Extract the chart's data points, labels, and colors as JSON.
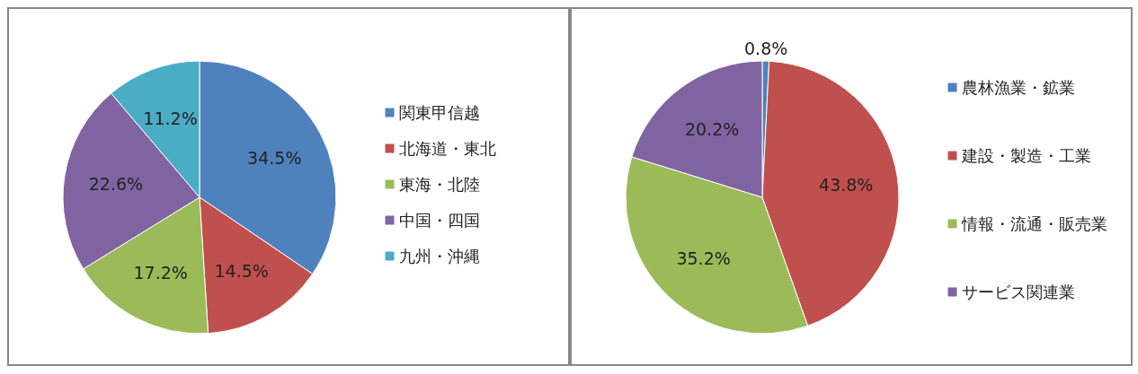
{
  "chart_data": [
    {
      "type": "pie",
      "categories": [
        "関東甲信越",
        "北海道・東北",
        "東海・北陸",
        "中国・四国",
        "九州・沖縄"
      ],
      "values": [
        34.5,
        14.5,
        17.2,
        22.6,
        11.2
      ],
      "colors": [
        "#4f81bd",
        "#c0504d",
        "#9bbb59",
        "#8064a2",
        "#4bacc6"
      ],
      "value_labels": [
        "34.5%",
        "14.5%",
        "17.2%",
        "22.6%",
        "11.2%"
      ],
      "legend": "right"
    },
    {
      "type": "pie",
      "categories": [
        "農林漁業・鉱業",
        "建設・製造・工業",
        "情報・流通・販売業",
        "サービス関連業"
      ],
      "values": [
        0.8,
        43.8,
        35.2,
        20.2
      ],
      "colors": [
        "#4f81bd",
        "#c0504d",
        "#9bbb59",
        "#8064a2"
      ],
      "value_labels": [
        "0.8%",
        "43.8%",
        "35.2%",
        "20.2%"
      ],
      "legend": "right"
    }
  ]
}
